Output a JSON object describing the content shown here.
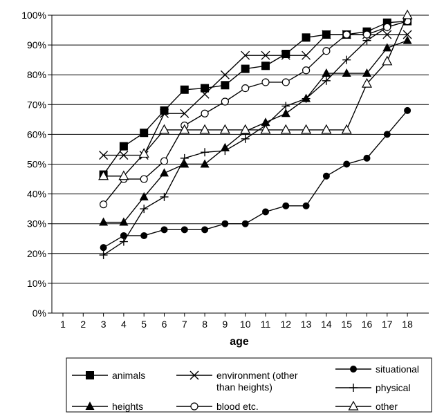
{
  "chart_data": {
    "type": "line",
    "xlabel": "age",
    "ylabel": "",
    "title": "",
    "x": [
      1,
      2,
      3,
      4,
      5,
      6,
      7,
      8,
      9,
      10,
      11,
      12,
      13,
      14,
      15,
      16,
      17,
      18
    ],
    "y_ticks": [
      "0%",
      "10%",
      "20%",
      "30%",
      "40%",
      "50%",
      "60%",
      "70%",
      "80%",
      "90%",
      "100%"
    ],
    "ylim": [
      0,
      100
    ],
    "grid": "horizontal",
    "legend_position": "bottom",
    "series": [
      {
        "name": "animals",
        "marker": "square-filled",
        "x": [
          3,
          4,
          5,
          6,
          7,
          8,
          9,
          10,
          11,
          12,
          13,
          14,
          15,
          16,
          17,
          18
        ],
        "values": [
          46.5,
          56,
          60.5,
          68,
          75,
          75.5,
          76.5,
          82,
          83,
          87,
          92.5,
          93.5,
          93.5,
          94.5,
          97.5,
          98
        ]
      },
      {
        "name": "environment (other than heights)",
        "marker": "x",
        "x": [
          3,
          4,
          5,
          6,
          7,
          8,
          9,
          10,
          11,
          12,
          13,
          14,
          15,
          16,
          17,
          18
        ],
        "values": [
          53,
          53,
          53,
          67,
          67,
          73.5,
          80,
          86.5,
          86.5,
          86.5,
          86.5,
          93.5,
          93.5,
          93.5,
          93.5,
          93.5
        ]
      },
      {
        "name": "situational",
        "marker": "circle-filled",
        "x": [
          3,
          4,
          5,
          6,
          7,
          8,
          9,
          10,
          11,
          12,
          13,
          14,
          15,
          16,
          17,
          18
        ],
        "values": [
          22,
          26,
          26,
          28,
          28,
          28,
          30,
          30,
          34,
          36,
          36,
          46,
          50,
          52,
          60,
          68
        ]
      },
      {
        "name": "physical",
        "marker": "plus",
        "x": [
          3,
          4,
          5,
          6,
          7,
          8,
          9,
          10,
          11,
          12,
          13,
          14,
          15,
          16,
          17,
          18
        ],
        "values": [
          19.5,
          24,
          35,
          39,
          52,
          54,
          54.5,
          58.5,
          63,
          69.5,
          72,
          78,
          85,
          91.5,
          96,
          98
        ]
      },
      {
        "name": "heights",
        "marker": "triangle-filled",
        "x": [
          3,
          4,
          5,
          6,
          7,
          8,
          9,
          10,
          11,
          12,
          13,
          14,
          15,
          16,
          17,
          18
        ],
        "values": [
          30.5,
          30.5,
          39,
          47,
          50,
          50,
          55.5,
          61,
          64,
          67,
          72,
          80.5,
          80.5,
          80.5,
          89,
          91.5
        ]
      },
      {
        "name": "blood etc.",
        "marker": "circle-open",
        "x": [
          3,
          4,
          5,
          6,
          7,
          8,
          9,
          10,
          11,
          12,
          13,
          14,
          15,
          16,
          17,
          18
        ],
        "values": [
          36.5,
          45,
          45,
          51,
          63,
          67,
          71,
          75.5,
          77.5,
          77.5,
          81.5,
          88,
          93.5,
          93.5,
          96,
          98
        ]
      },
      {
        "name": "other",
        "marker": "triangle-open",
        "x": [
          3,
          4,
          5,
          6,
          7,
          8,
          9,
          10,
          11,
          12,
          13,
          14,
          15,
          16,
          17,
          18
        ],
        "values": [
          46,
          46,
          53.5,
          61.5,
          61.5,
          61.5,
          61.5,
          61.5,
          61.5,
          61.5,
          61.5,
          61.5,
          61.5,
          77,
          84.5,
          100
        ]
      }
    ],
    "legend_layout": [
      [
        "animals",
        "environment (other than heights)",
        "situational"
      ],
      [
        "heights",
        "blood etc.",
        "other",
        "physical"
      ]
    ]
  }
}
